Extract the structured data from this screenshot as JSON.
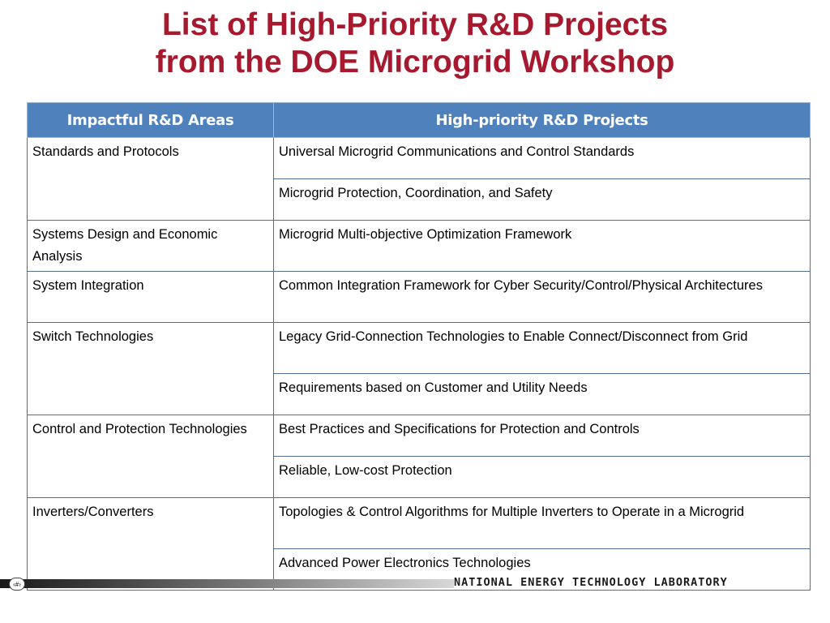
{
  "title": {
    "line1": "List of High-Priority R&D Projects",
    "line2": "from the DOE Microgrid Workshop"
  },
  "table": {
    "headers": [
      "Impactful R&D Areas",
      "High-priority R&D Projects"
    ],
    "rows": [
      {
        "area": "Standards and Protocols",
        "projects": [
          "Universal Microgrid Communications and Control Standards",
          "Microgrid Protection, Coordination, and Safety"
        ]
      },
      {
        "area": "Systems Design and Economic Analysis",
        "projects": [
          "Microgrid Multi-objective Optimization Framework"
        ]
      },
      {
        "area": "System Integration",
        "projects": [
          "Common Integration Framework for Cyber Security/Control/Physical Architectures"
        ]
      },
      {
        "area": "Switch Technologies",
        "projects": [
          "Legacy Grid-Connection Technologies to Enable Connect/Disconnect from Grid",
          "Requirements based on Customer and Utility Needs"
        ]
      },
      {
        "area": "Control and Protection Technologies",
        "projects": [
          "Best Practices and Specifications for Protection and Controls",
          "Reliable, Low-cost Protection"
        ]
      },
      {
        "area": "Inverters/Converters",
        "projects": [
          "Topologies & Control Algorithms for Multiple Inverters to Operate in a Microgrid",
          "Advanced Power Electronics Technologies"
        ]
      }
    ]
  },
  "footer": {
    "page_marker": "‹#›",
    "brand": "NATIONAL ENERGY TECHNOLOGY LABORATORY"
  },
  "colors": {
    "title": "#a6192e",
    "header_bg": "#4f81bd"
  }
}
